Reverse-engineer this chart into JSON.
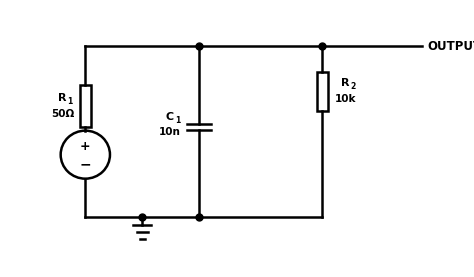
{
  "bg_color": "#ffffff",
  "line_color": "#000000",
  "line_width": 1.8,
  "fig_width": 4.74,
  "fig_height": 2.77,
  "dpi": 100,
  "output_label": "OUTPUT",
  "r1_label1": "R",
  "r1_label2": "1",
  "r1_value": "50Ω",
  "c1_label1": "C",
  "c1_label2": "1",
  "c1_value": "10n",
  "r2_label1": "R",
  "r2_label2": "2",
  "r2_value": "10k"
}
